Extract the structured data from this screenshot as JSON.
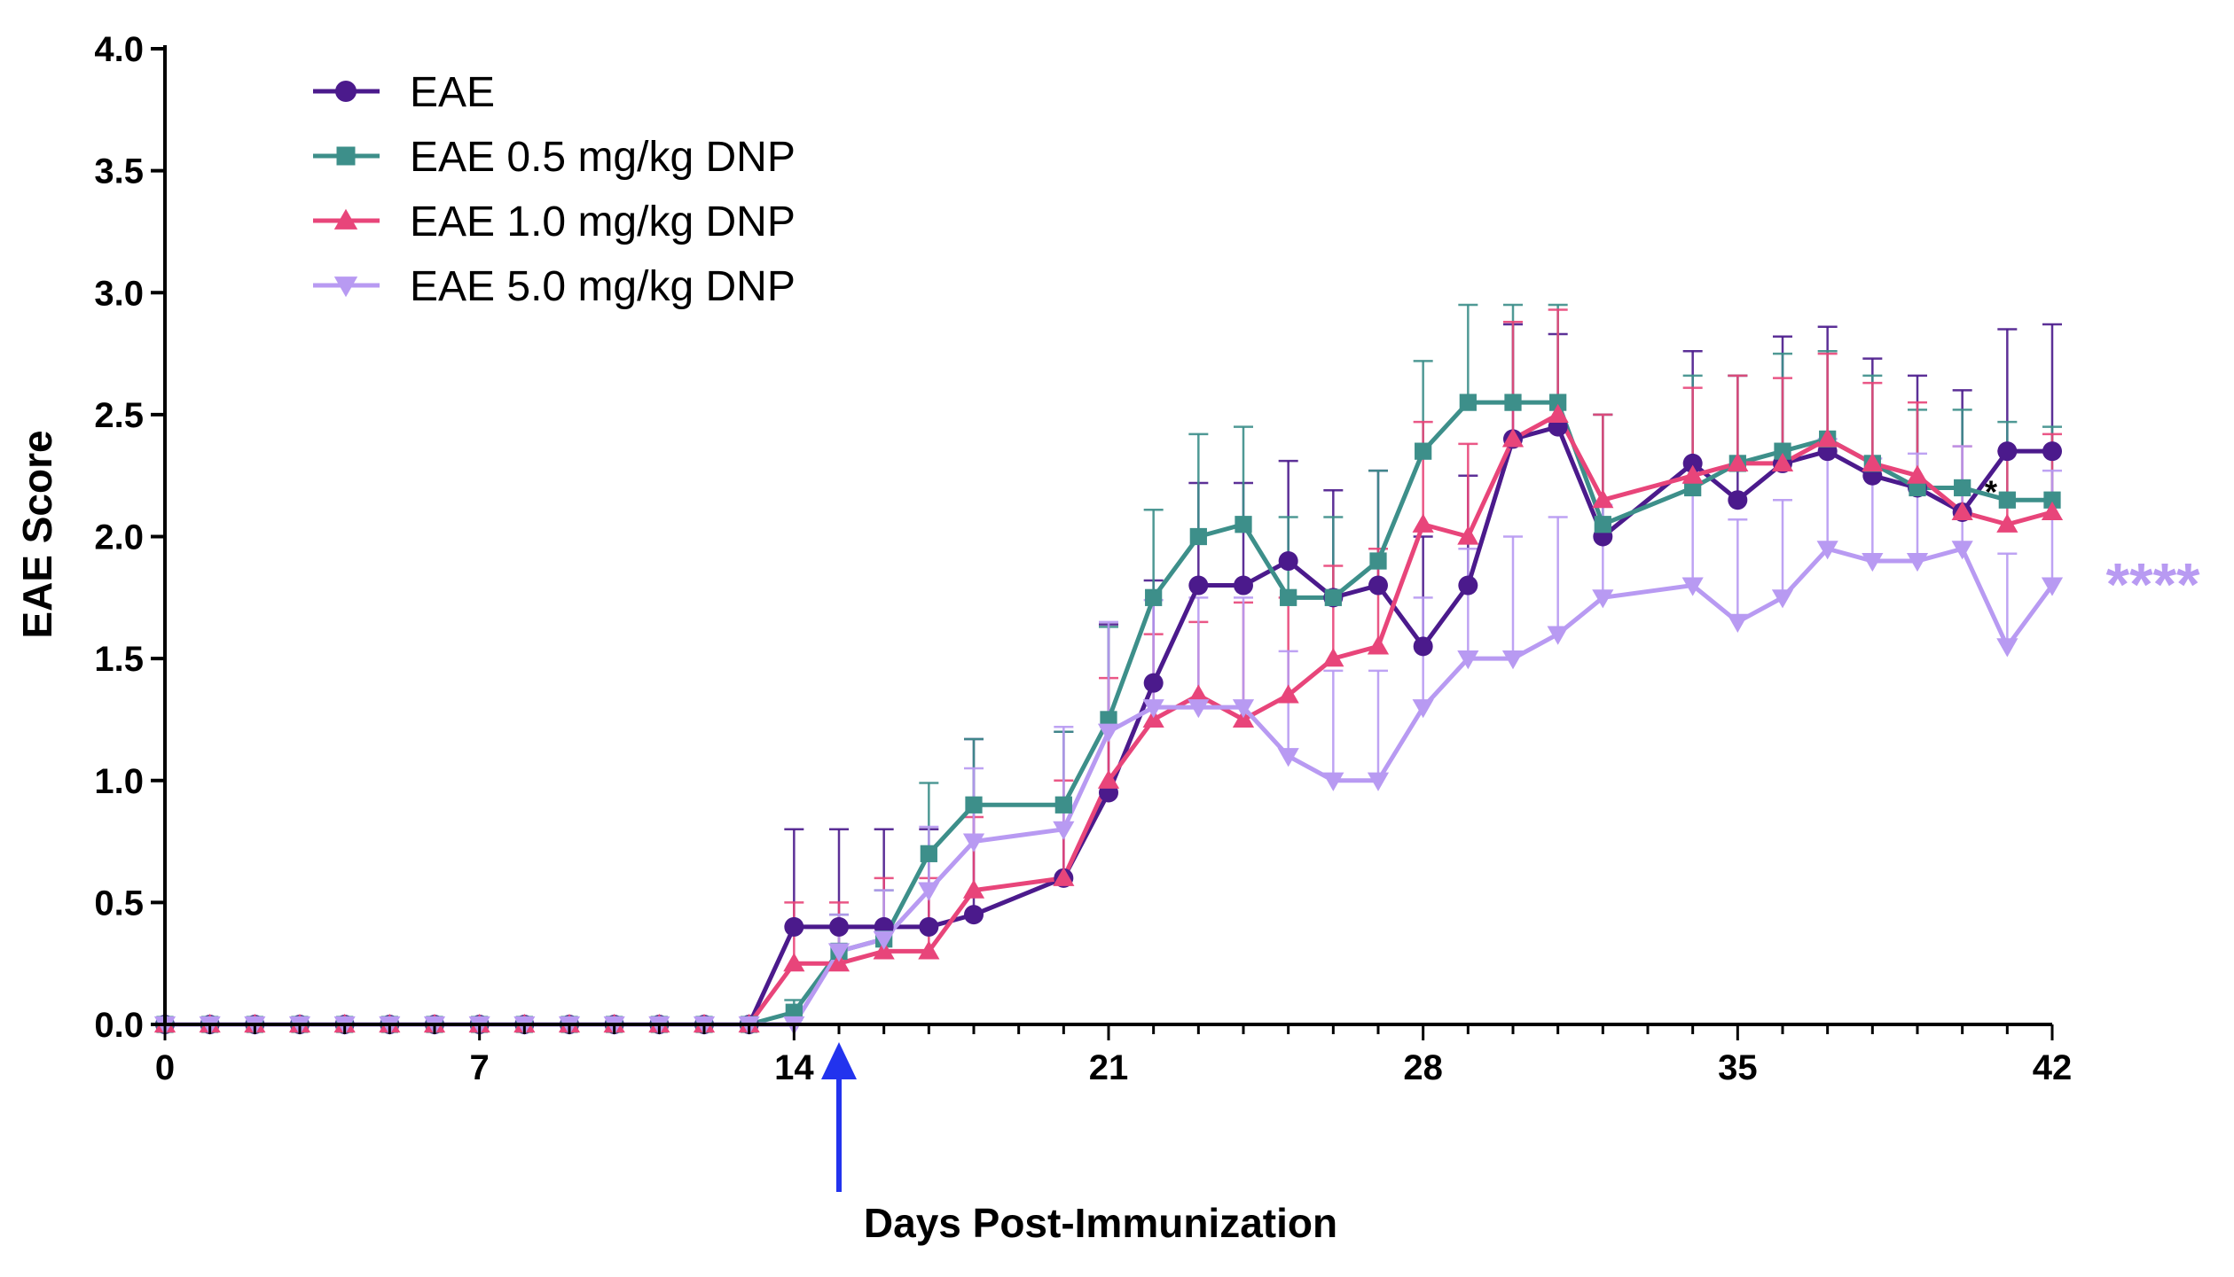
{
  "chart_data": {
    "type": "line",
    "title": "",
    "xlabel": "Days Post-Immunization",
    "ylabel": "EAE Score",
    "xlim": [
      0,
      42
    ],
    "ylim": [
      0,
      4
    ],
    "xticks": [
      0,
      7,
      14,
      21,
      28,
      35,
      42
    ],
    "yticks": [
      0.0,
      0.5,
      1.0,
      1.5,
      2.0,
      2.5,
      3.0,
      3.5,
      4.0
    ],
    "ytick_labels": [
      "0.0",
      "0.5",
      "1.0",
      "1.5",
      "2.0",
      "2.5",
      "3.0",
      "3.5",
      "4.0"
    ],
    "grid": false,
    "legend_position": "top-left",
    "treatment_arrow_day": 15,
    "annotations": [
      {
        "text": "*",
        "x": 40.5,
        "y": 2.16,
        "color": "#000000"
      },
      {
        "text": "****",
        "x": 43,
        "y": 1.8,
        "color": "#b89af2"
      }
    ],
    "series": [
      {
        "name": "EAE",
        "color": "#4b1a8c",
        "marker": "circle",
        "x": [
          0,
          1,
          2,
          3,
          4,
          5,
          6,
          7,
          8,
          9,
          10,
          11,
          12,
          13,
          14,
          15,
          16,
          17,
          18,
          20,
          21,
          22,
          23,
          24,
          25,
          26,
          27,
          28,
          29,
          30,
          31,
          32,
          34,
          35,
          36,
          37,
          38,
          39,
          40,
          41,
          42
        ],
        "y": [
          0,
          0,
          0,
          0,
          0,
          0,
          0,
          0,
          0,
          0,
          0,
          0,
          0,
          0,
          0.4,
          0.4,
          0.4,
          0.4,
          0.45,
          0.6,
          0.95,
          1.4,
          1.8,
          1.8,
          1.9,
          1.75,
          1.8,
          1.55,
          1.8,
          2.4,
          2.45,
          2.0,
          2.3,
          2.15,
          2.3,
          2.35,
          2.25,
          2.2,
          2.1,
          2.35,
          2.35
        ],
        "err": [
          0,
          0,
          0,
          0,
          0,
          0,
          0,
          0,
          0,
          0,
          0,
          0,
          0,
          0,
          0.4,
          0.4,
          0.4,
          0.4,
          0.72,
          0.6,
          0.69,
          0.42,
          0.42,
          0.42,
          0.41,
          0.44,
          0.47,
          0.45,
          0.45,
          0.47,
          0.38,
          0.5,
          0.46,
          0.51,
          0.52,
          0.51,
          0.48,
          0.46,
          0.5,
          0.5,
          0.52
        ]
      },
      {
        "name": "EAE 0.5 mg/kg DNP",
        "color": "#3d8f8a",
        "marker": "square",
        "x": [
          0,
          1,
          2,
          3,
          4,
          5,
          6,
          7,
          8,
          9,
          10,
          11,
          12,
          13,
          14,
          15,
          16,
          17,
          18,
          20,
          21,
          22,
          23,
          24,
          25,
          26,
          27,
          28,
          29,
          30,
          31,
          32,
          34,
          35,
          36,
          37,
          38,
          39,
          40,
          41,
          42
        ],
        "y": [
          0,
          0,
          0,
          0,
          0,
          0,
          0,
          0,
          0,
          0,
          0,
          0,
          0,
          0,
          0.05,
          0.3,
          0.35,
          0.7,
          0.9,
          0.9,
          1.25,
          1.75,
          2.0,
          2.05,
          1.75,
          1.75,
          1.9,
          2.35,
          2.55,
          2.55,
          2.55,
          2.05,
          2.2,
          2.3,
          2.35,
          2.4,
          2.3,
          2.2,
          2.2,
          2.15,
          2.15
        ],
        "err": [
          0,
          0,
          0,
          0,
          0,
          0,
          0,
          0,
          0,
          0,
          0,
          0,
          0,
          0,
          0.05,
          0.15,
          0.2,
          0.29,
          0.27,
          0.3,
          0.38,
          0.36,
          0.42,
          0.4,
          0.33,
          0.33,
          0.37,
          0.37,
          0.4,
          0.4,
          0.4,
          0.45,
          0.46,
          0.36,
          0.4,
          0.36,
          0.36,
          0.32,
          0.32,
          0.32,
          0.3
        ]
      },
      {
        "name": "EAE 1.0 mg/kg DNP",
        "color": "#e8457a",
        "marker": "triangle-up",
        "x": [
          0,
          1,
          2,
          3,
          4,
          5,
          6,
          7,
          8,
          9,
          10,
          11,
          12,
          13,
          14,
          15,
          16,
          17,
          18,
          20,
          21,
          22,
          23,
          24,
          25,
          26,
          27,
          28,
          29,
          30,
          31,
          32,
          34,
          35,
          36,
          37,
          38,
          39,
          40,
          41,
          42
        ],
        "y": [
          0,
          0,
          0,
          0,
          0,
          0,
          0,
          0,
          0,
          0,
          0,
          0,
          0,
          0,
          0.25,
          0.25,
          0.3,
          0.3,
          0.55,
          0.6,
          1.0,
          1.25,
          1.35,
          1.25,
          1.35,
          1.5,
          1.55,
          2.05,
          2.0,
          2.4,
          2.5,
          2.15,
          2.25,
          2.3,
          2.3,
          2.4,
          2.3,
          2.25,
          2.1,
          2.05,
          2.1
        ],
        "err": [
          0,
          0,
          0,
          0,
          0,
          0,
          0,
          0,
          0,
          0,
          0,
          0,
          0,
          0,
          0.25,
          0.25,
          0.3,
          0.3,
          0.3,
          0.4,
          0.42,
          0.35,
          0.3,
          0.48,
          0.4,
          0.38,
          0.4,
          0.42,
          0.38,
          0.48,
          0.43,
          0.35,
          0.36,
          0.36,
          0.35,
          0.35,
          0.33,
          0.3,
          0.27,
          0.3,
          0.32
        ]
      },
      {
        "name": "EAE 5.0 mg/kg DNP",
        "color": "#b89af2",
        "marker": "triangle-down",
        "x": [
          0,
          1,
          2,
          3,
          4,
          5,
          6,
          7,
          8,
          9,
          10,
          11,
          12,
          13,
          14,
          15,
          16,
          17,
          18,
          20,
          21,
          22,
          23,
          24,
          25,
          26,
          27,
          28,
          29,
          30,
          31,
          32,
          34,
          35,
          36,
          37,
          38,
          39,
          40,
          41,
          42
        ],
        "y": [
          0,
          0,
          0,
          0,
          0,
          0,
          0,
          0,
          0,
          0,
          0,
          0,
          0,
          0,
          0.0,
          0.3,
          0.35,
          0.55,
          0.75,
          0.8,
          1.2,
          1.3,
          1.3,
          1.3,
          1.1,
          1.0,
          1.0,
          1.3,
          1.5,
          1.5,
          1.6,
          1.75,
          1.8,
          1.65,
          1.75,
          1.95,
          1.9,
          1.9,
          1.95,
          1.55,
          1.8
        ],
        "err": [
          0,
          0,
          0,
          0,
          0,
          0,
          0,
          0,
          0,
          0,
          0,
          0,
          0,
          0,
          0.02,
          0.15,
          0.2,
          0.26,
          0.3,
          0.42,
          0.45,
          0.44,
          0.45,
          0.45,
          0.43,
          0.45,
          0.45,
          0.45,
          0.45,
          0.5,
          0.48,
          0.38,
          0.42,
          0.42,
          0.4,
          0.45,
          0.42,
          0.44,
          0.42,
          0.38,
          0.47
        ]
      }
    ]
  }
}
